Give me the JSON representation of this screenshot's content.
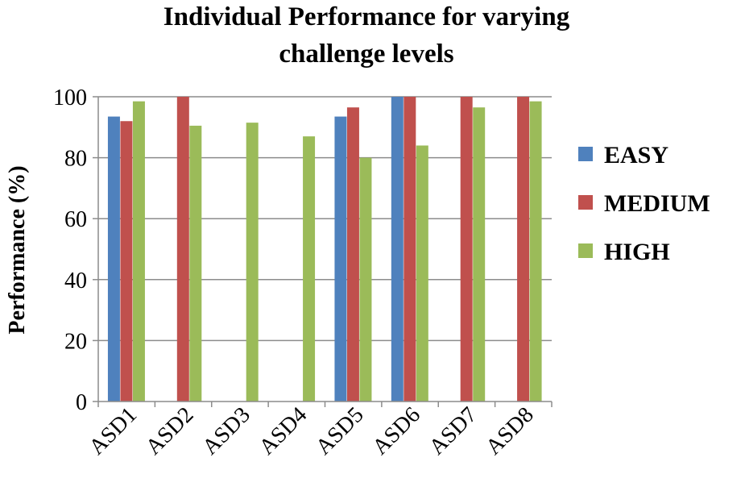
{
  "chart_data": {
    "type": "bar",
    "title_line1": "Individual Performance for varying",
    "title_line2": "challenge levels",
    "ylabel": "Performance (%)",
    "xlabel": "",
    "ylim": [
      0,
      100
    ],
    "yticks": [
      0,
      20,
      40,
      60,
      80,
      100
    ],
    "grid": true,
    "legend_position": "right",
    "categories": [
      "ASD1",
      "ASD2",
      "ASD3",
      "ASD4",
      "ASD5",
      "ASD6",
      "ASD7",
      "ASD8"
    ],
    "series": [
      {
        "name": "EASY",
        "color": "#4f81bd",
        "values": [
          93.5,
          null,
          null,
          null,
          93.5,
          100,
          null,
          null
        ]
      },
      {
        "name": "MEDIUM",
        "color": "#c0504d",
        "values": [
          92,
          100,
          null,
          null,
          96.5,
          100,
          100,
          100
        ]
      },
      {
        "name": "HIGH",
        "color": "#9bbb59",
        "values": [
          98.5,
          90.5,
          91.5,
          87,
          80,
          84,
          96.5,
          98.5
        ]
      }
    ]
  }
}
